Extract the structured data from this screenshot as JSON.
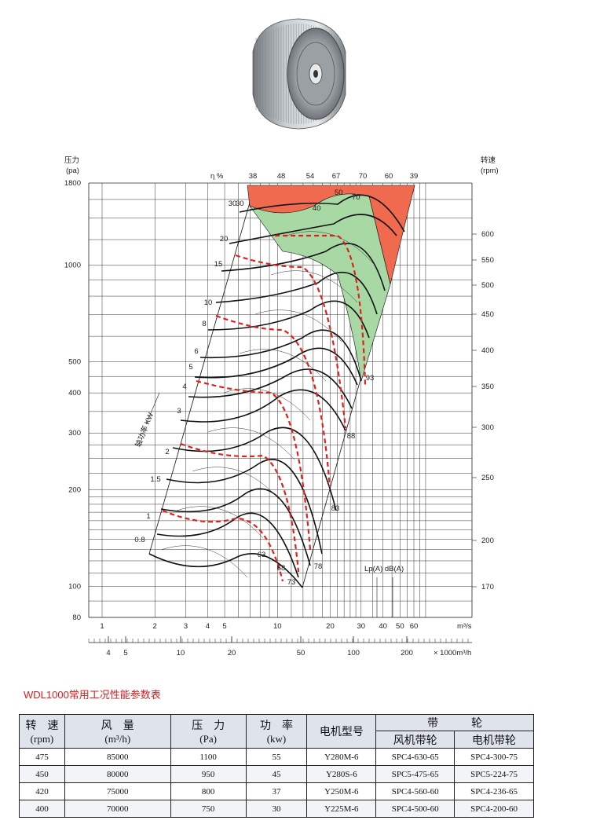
{
  "chart_data": {
    "type": "line",
    "y_axis_left": {
      "label_cn": "压力",
      "unit": "(pa)",
      "scale": "log",
      "ticks": [
        1800,
        1000,
        500,
        400,
        300,
        200,
        100,
        80
      ]
    },
    "y_axis_right": {
      "label_cn": "转速",
      "unit": "(rpm)",
      "ticks": [
        600,
        550,
        500,
        450,
        400,
        350,
        300,
        250,
        200,
        170
      ]
    },
    "x_axis_top_scale": {
      "unit": "m³/s",
      "scale": "log",
      "ticks": [
        "1",
        "2",
        "3",
        "4",
        "5",
        "10",
        "20",
        "30",
        "40",
        "50",
        "60"
      ]
    },
    "x_axis_bottom_scale": {
      "unit": "× 1000m³/h",
      "ticks": [
        "4",
        "5",
        "10",
        "20",
        "50",
        "100",
        "200"
      ]
    },
    "efficiency": {
      "label": "η %",
      "values": [
        "38",
        "48",
        "54",
        "67",
        "70",
        "60",
        "39"
      ]
    },
    "efficiency_inner_labels": [
      "30",
      "40",
      "50",
      "70"
    ],
    "shaft_power": {
      "label": "轴功率 KW",
      "values": [
        "30",
        "20",
        "15",
        "10",
        "8",
        "6",
        "5",
        "4",
        "3",
        "2",
        "1.5",
        "1",
        "0.8"
      ]
    },
    "noise": {
      "label": "Lp(A) dB(A)",
      "values": [
        "63",
        "68",
        "73",
        "78",
        "83",
        "88",
        "93"
      ]
    },
    "colors": {
      "high_zone": "#ef6a4e",
      "optimal_zone": "#a8d9a5",
      "selected_curve": "#e0201c",
      "grid": "#222222"
    }
  },
  "table": {
    "title": "WDL1000常用工况性能参数表",
    "headers": {
      "speed": "转　速",
      "speed_unit": "(rpm)",
      "flow": "风　量",
      "flow_unit": "(m³/h)",
      "pressure": "压　力",
      "pressure_unit": "(Pa)",
      "power": "功　率",
      "power_unit": "(kw)",
      "motor": "电机型号",
      "pulley": "带　　　轮",
      "fan_pulley": "风机带轮",
      "motor_pulley": "电机带轮"
    },
    "rows": [
      [
        "475",
        "85000",
        "1100",
        "55",
        "Y280M-6",
        "SPC4-630-65",
        "SPC4-300-75"
      ],
      [
        "450",
        "80000",
        "950",
        "45",
        "Y280S-6",
        "SPC5-475-65",
        "SPC5-224-75"
      ],
      [
        "420",
        "75000",
        "800",
        "37",
        "Y250M-6",
        "SPC4-560-60",
        "SPC4-236-65"
      ],
      [
        "400",
        "70000",
        "750",
        "30",
        "Y225M-6",
        "SPC4-500-60",
        "SPC4-200-60"
      ]
    ]
  }
}
